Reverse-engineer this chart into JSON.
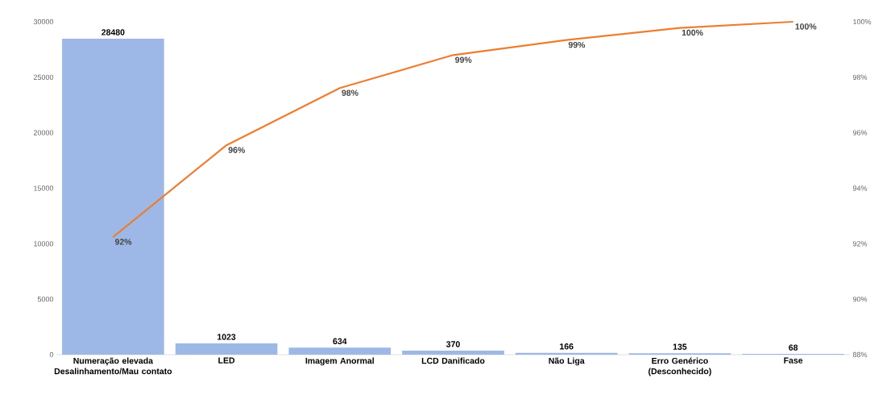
{
  "chart_data": {
    "type": "bar",
    "categories": [
      "Numeração elevada Desalinhamento/Mau contato",
      "LED",
      "Imagem Anormal",
      "LCD Danificado",
      "Não Liga",
      "Erro Genérico (Desconhecido)",
      "Fase"
    ],
    "series": [
      {
        "color": "#9db8e6",
        "values": [
          28480,
          1023,
          634,
          370,
          166,
          135,
          68
        ]
      },
      {
        "type": "line",
        "axis": "y2",
        "color": "#ed7d31",
        "values": [
          92.24,
          95.55,
          97.61,
          98.8,
          99.34,
          99.78,
          100
        ],
        "value_labels": [
          "92%",
          "96%",
          "98%",
          "99%",
          "99%",
          "100%",
          "100%"
        ]
      }
    ],
    "data_labels": true,
    "ylim": [
      0,
      30000
    ],
    "yticks": [
      0,
      5000,
      10000,
      15000,
      20000,
      25000,
      30000
    ],
    "y2lim": [
      88,
      100
    ],
    "y2ticks": [
      {
        "value": 88,
        "label": "88%"
      },
      {
        "value": 90,
        "label": "90%"
      },
      {
        "value": 92,
        "label": "92%"
      },
      {
        "value": 94,
        "label": "94%"
      },
      {
        "value": 96,
        "label": "96%"
      },
      {
        "value": 98,
        "label": "98%"
      },
      {
        "value": 100,
        "label": "100%"
      }
    ]
  }
}
